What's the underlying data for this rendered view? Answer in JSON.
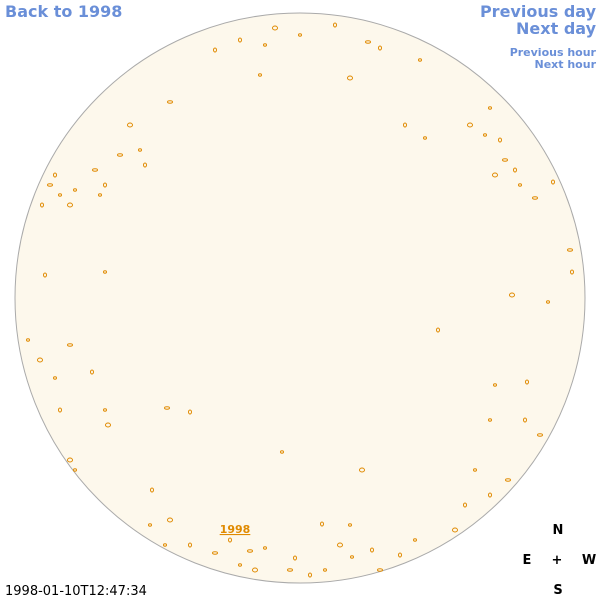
{
  "navigation": {
    "back_to_year": "Back to 1998",
    "previous_day": "Previous day",
    "next_day": "Next day",
    "previous_hour": "Previous hour",
    "next_hour": "Next hour"
  },
  "disk_label": "1998",
  "timestamp": "1998-01-10T12:47:34",
  "compass": {
    "north": "N",
    "east": "E",
    "center": "+",
    "west": "W",
    "south": "S"
  }
}
